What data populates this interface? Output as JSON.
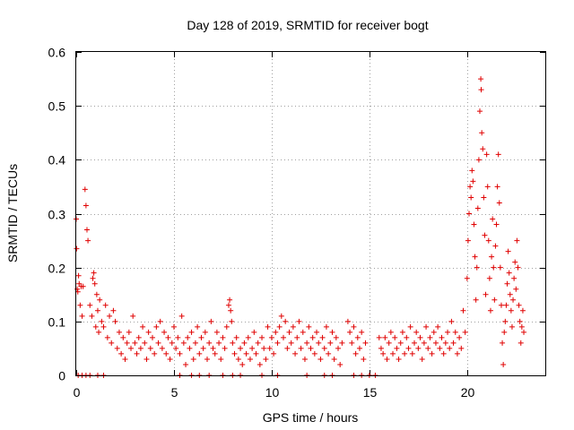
{
  "chart_data": {
    "type": "scatter",
    "title": "Day 128 of 2019, SRMTID for receiver bogt",
    "xlabel": "GPS time / hours",
    "ylabel": "SRMTID / TECUs",
    "xlim": [
      0,
      24
    ],
    "ylim": [
      0,
      0.6
    ],
    "x_ticks": [
      0,
      5,
      10,
      15,
      20
    ],
    "x_tick_labels": [
      "0",
      "5",
      "10",
      "15",
      "20"
    ],
    "y_ticks": [
      0,
      0.1,
      0.2,
      0.3,
      0.4,
      0.5,
      0.6
    ],
    "y_tick_labels": [
      "0",
      "0.1",
      "0.2",
      "0.3",
      "0.4",
      "0.5",
      "0.6"
    ],
    "grid": true,
    "marker": "plus",
    "color": "#e00000",
    "series": [
      {
        "name": "SRMTID",
        "points": [
          [
            0.0,
            0.29
          ],
          [
            0.02,
            0.235
          ],
          [
            0.05,
            0.16
          ],
          [
            0.08,
            0.155
          ],
          [
            0.12,
            0.185
          ],
          [
            0.15,
            0.17
          ],
          [
            0.2,
            0.13
          ],
          [
            0.25,
            0.165
          ],
          [
            0.3,
            0.11
          ],
          [
            0.35,
            0.165
          ],
          [
            0.45,
            0.345
          ],
          [
            0.5,
            0.315
          ],
          [
            0.55,
            0.27
          ],
          [
            0.6,
            0.25
          ],
          [
            0.7,
            0.13
          ],
          [
            0.8,
            0.11
          ],
          [
            0.85,
            0.18
          ],
          [
            0.9,
            0.19
          ],
          [
            0.95,
            0.17
          ],
          [
            1.0,
            0.09
          ],
          [
            1.05,
            0.15
          ],
          [
            1.1,
            0.12
          ],
          [
            1.15,
            0.08
          ],
          [
            1.2,
            0.14
          ],
          [
            1.3,
            0.1
          ],
          [
            1.4,
            0.09
          ],
          [
            1.5,
            0.13
          ],
          [
            1.6,
            0.07
          ],
          [
            1.7,
            0.11
          ],
          [
            1.8,
            0.06
          ],
          [
            1.9,
            0.12
          ],
          [
            2.0,
            0.1
          ],
          [
            2.1,
            0.05
          ],
          [
            2.2,
            0.08
          ],
          [
            2.3,
            0.04
          ],
          [
            2.4,
            0.07
          ],
          [
            2.5,
            0.03
          ],
          [
            2.6,
            0.06
          ],
          [
            2.7,
            0.08
          ],
          [
            2.8,
            0.05
          ],
          [
            2.9,
            0.11
          ],
          [
            3.0,
            0.06
          ],
          [
            3.1,
            0.04
          ],
          [
            3.2,
            0.07
          ],
          [
            3.3,
            0.05
          ],
          [
            3.4,
            0.09
          ],
          [
            3.5,
            0.06
          ],
          [
            3.6,
            0.03
          ],
          [
            3.7,
            0.08
          ],
          [
            3.8,
            0.05
          ],
          [
            3.9,
            0.07
          ],
          [
            4.0,
            0.04
          ],
          [
            4.1,
            0.09
          ],
          [
            4.2,
            0.06
          ],
          [
            4.3,
            0.1
          ],
          [
            4.4,
            0.05
          ],
          [
            4.5,
            0.08
          ],
          [
            4.6,
            0.04
          ],
          [
            4.7,
            0.07
          ],
          [
            4.8,
            0.03
          ],
          [
            4.9,
            0.06
          ],
          [
            5.0,
            0.09
          ],
          [
            5.1,
            0.05
          ],
          [
            5.2,
            0.07
          ],
          [
            5.3,
            0.04
          ],
          [
            5.4,
            0.11
          ],
          [
            5.5,
            0.06
          ],
          [
            5.6,
            0.02
          ],
          [
            5.7,
            0.07
          ],
          [
            5.8,
            0.05
          ],
          [
            5.9,
            0.08
          ],
          [
            6.0,
            0.03
          ],
          [
            6.1,
            0.06
          ],
          [
            6.2,
            0.09
          ],
          [
            6.3,
            0.04
          ],
          [
            6.4,
            0.07
          ],
          [
            6.5,
            0.05
          ],
          [
            6.6,
            0.08
          ],
          [
            6.7,
            0.03
          ],
          [
            6.8,
            0.06
          ],
          [
            6.9,
            0.1
          ],
          [
            7.0,
            0.05
          ],
          [
            7.1,
            0.04
          ],
          [
            7.2,
            0.08
          ],
          [
            7.3,
            0.06
          ],
          [
            7.4,
            0.03
          ],
          [
            7.5,
            0.07
          ],
          [
            7.6,
            0.05
          ],
          [
            7.7,
            0.09
          ],
          [
            7.8,
            0.13
          ],
          [
            7.85,
            0.14
          ],
          [
            7.9,
            0.12
          ],
          [
            7.95,
            0.1
          ],
          [
            8.0,
            0.06
          ],
          [
            8.1,
            0.04
          ],
          [
            8.2,
            0.07
          ],
          [
            8.3,
            0.03
          ],
          [
            8.4,
            0.05
          ],
          [
            8.5,
            0.02
          ],
          [
            8.6,
            0.06
          ],
          [
            8.7,
            0.04
          ],
          [
            8.8,
            0.07
          ],
          [
            8.9,
            0.03
          ],
          [
            9.0,
            0.05
          ],
          [
            9.1,
            0.08
          ],
          [
            9.2,
            0.04
          ],
          [
            9.3,
            0.06
          ],
          [
            9.4,
            0.02
          ],
          [
            9.5,
            0.07
          ],
          [
            9.6,
            0.05
          ],
          [
            9.7,
            0.03
          ],
          [
            9.8,
            0.09
          ],
          [
            9.9,
            0.05
          ],
          [
            10.0,
            0.07
          ],
          [
            10.1,
            0.04
          ],
          [
            10.2,
            0.08
          ],
          [
            10.3,
            0.06
          ],
          [
            10.4,
            0.09
          ],
          [
            10.5,
            0.11
          ],
          [
            10.6,
            0.07
          ],
          [
            10.7,
            0.1
          ],
          [
            10.8,
            0.05
          ],
          [
            10.9,
            0.08
          ],
          [
            11.0,
            0.06
          ],
          [
            11.1,
            0.09
          ],
          [
            11.2,
            0.04
          ],
          [
            11.3,
            0.07
          ],
          [
            11.4,
            0.1
          ],
          [
            11.5,
            0.05
          ],
          [
            11.6,
            0.08
          ],
          [
            11.7,
            0.03
          ],
          [
            11.8,
            0.06
          ],
          [
            11.9,
            0.09
          ],
          [
            12.0,
            0.05
          ],
          [
            12.1,
            0.07
          ],
          [
            12.2,
            0.04
          ],
          [
            12.3,
            0.08
          ],
          [
            12.4,
            0.06
          ],
          [
            12.5,
            0.03
          ],
          [
            12.6,
            0.07
          ],
          [
            12.7,
            0.05
          ],
          [
            12.8,
            0.09
          ],
          [
            12.9,
            0.04
          ],
          [
            13.0,
            0.06
          ],
          [
            13.1,
            0.08
          ],
          [
            13.2,
            0.03
          ],
          [
            13.3,
            0.07
          ],
          [
            13.4,
            0.05
          ],
          [
            13.5,
            0.02
          ],
          [
            13.6,
            0.06
          ],
          [
            13.9,
            0.1
          ],
          [
            14.0,
            0.08
          ],
          [
            14.1,
            0.06
          ],
          [
            14.2,
            0.09
          ],
          [
            14.3,
            0.04
          ],
          [
            14.4,
            0.07
          ],
          [
            14.5,
            0.05
          ],
          [
            14.6,
            0.08
          ],
          [
            14.7,
            0.03
          ],
          [
            14.8,
            0.06
          ],
          [
            15.5,
            0.07
          ],
          [
            15.6,
            0.05
          ],
          [
            15.7,
            0.04
          ],
          [
            15.8,
            0.07
          ],
          [
            15.9,
            0.03
          ],
          [
            16.0,
            0.06
          ],
          [
            16.1,
            0.08
          ],
          [
            16.2,
            0.04
          ],
          [
            16.3,
            0.07
          ],
          [
            16.4,
            0.05
          ],
          [
            16.5,
            0.03
          ],
          [
            16.6,
            0.06
          ],
          [
            16.7,
            0.08
          ],
          [
            16.8,
            0.04
          ],
          [
            16.9,
            0.07
          ],
          [
            17.0,
            0.05
          ],
          [
            17.1,
            0.09
          ],
          [
            17.2,
            0.04
          ],
          [
            17.3,
            0.06
          ],
          [
            17.4,
            0.08
          ],
          [
            17.5,
            0.05
          ],
          [
            17.6,
            0.07
          ],
          [
            17.7,
            0.03
          ],
          [
            17.8,
            0.06
          ],
          [
            17.9,
            0.09
          ],
          [
            18.0,
            0.05
          ],
          [
            18.1,
            0.07
          ],
          [
            18.2,
            0.04
          ],
          [
            18.3,
            0.08
          ],
          [
            18.4,
            0.06
          ],
          [
            18.5,
            0.09
          ],
          [
            18.6,
            0.05
          ],
          [
            18.7,
            0.07
          ],
          [
            18.8,
            0.04
          ],
          [
            18.9,
            0.06
          ],
          [
            19.0,
            0.08
          ],
          [
            19.1,
            0.05
          ],
          [
            19.2,
            0.1
          ],
          [
            19.3,
            0.06
          ],
          [
            19.4,
            0.08
          ],
          [
            19.5,
            0.04
          ],
          [
            19.6,
            0.07
          ],
          [
            19.7,
            0.05
          ],
          [
            19.8,
            0.12
          ],
          [
            19.9,
            0.08
          ],
          [
            20.0,
            0.18
          ],
          [
            20.05,
            0.25
          ],
          [
            20.1,
            0.3
          ],
          [
            20.15,
            0.35
          ],
          [
            20.2,
            0.33
          ],
          [
            20.25,
            0.38
          ],
          [
            20.3,
            0.36
          ],
          [
            20.35,
            0.28
          ],
          [
            20.4,
            0.22
          ],
          [
            20.45,
            0.14
          ],
          [
            20.5,
            0.2
          ],
          [
            20.55,
            0.31
          ],
          [
            20.6,
            0.4
          ],
          [
            20.65,
            0.49
          ],
          [
            20.7,
            0.55
          ],
          [
            20.72,
            0.53
          ],
          [
            20.75,
            0.45
          ],
          [
            20.8,
            0.42
          ],
          [
            20.85,
            0.33
          ],
          [
            20.9,
            0.26
          ],
          [
            20.95,
            0.15
          ],
          [
            21.0,
            0.41
          ],
          [
            21.05,
            0.35
          ],
          [
            21.1,
            0.25
          ],
          [
            21.15,
            0.18
          ],
          [
            21.2,
            0.12
          ],
          [
            21.25,
            0.22
          ],
          [
            21.3,
            0.29
          ],
          [
            21.35,
            0.2
          ],
          [
            21.4,
            0.14
          ],
          [
            21.45,
            0.24
          ],
          [
            21.5,
            0.28
          ],
          [
            21.55,
            0.35
          ],
          [
            21.6,
            0.41
          ],
          [
            21.65,
            0.32
          ],
          [
            21.7,
            0.2
          ],
          [
            21.75,
            0.13
          ],
          [
            21.8,
            0.06
          ],
          [
            21.85,
            0.02
          ],
          [
            21.9,
            0.08
          ],
          [
            21.95,
            0.1
          ],
          [
            22.0,
            0.13
          ],
          [
            22.05,
            0.17
          ],
          [
            22.1,
            0.23
          ],
          [
            22.15,
            0.19
          ],
          [
            22.2,
            0.15
          ],
          [
            22.25,
            0.12
          ],
          [
            22.3,
            0.09
          ],
          [
            22.35,
            0.14
          ],
          [
            22.4,
            0.18
          ],
          [
            22.45,
            0.21
          ],
          [
            22.5,
            0.16
          ],
          [
            22.55,
            0.25
          ],
          [
            22.6,
            0.2
          ],
          [
            22.65,
            0.13
          ],
          [
            22.7,
            0.1
          ],
          [
            22.75,
            0.06
          ],
          [
            22.8,
            0.09
          ],
          [
            22.85,
            0.12
          ],
          [
            22.9,
            0.08
          ],
          [
            0.1,
            0.0
          ],
          [
            0.3,
            0.0
          ],
          [
            0.5,
            0.0
          ],
          [
            0.7,
            0.0
          ],
          [
            1.1,
            0.0
          ],
          [
            1.4,
            0.0
          ],
          [
            5.3,
            0.0
          ],
          [
            5.9,
            0.0
          ],
          [
            6.3,
            0.0
          ],
          [
            6.8,
            0.0
          ],
          [
            7.5,
            0.0
          ],
          [
            8.0,
            0.0
          ],
          [
            8.4,
            0.0
          ],
          [
            9.5,
            0.0
          ],
          [
            10.3,
            0.0
          ],
          [
            11.8,
            0.0
          ],
          [
            12.7,
            0.0
          ],
          [
            13.1,
            0.0
          ],
          [
            14.2,
            0.0
          ],
          [
            14.6,
            0.0
          ],
          [
            15.0,
            0.0
          ],
          [
            15.3,
            0.0
          ]
        ]
      }
    ]
  }
}
